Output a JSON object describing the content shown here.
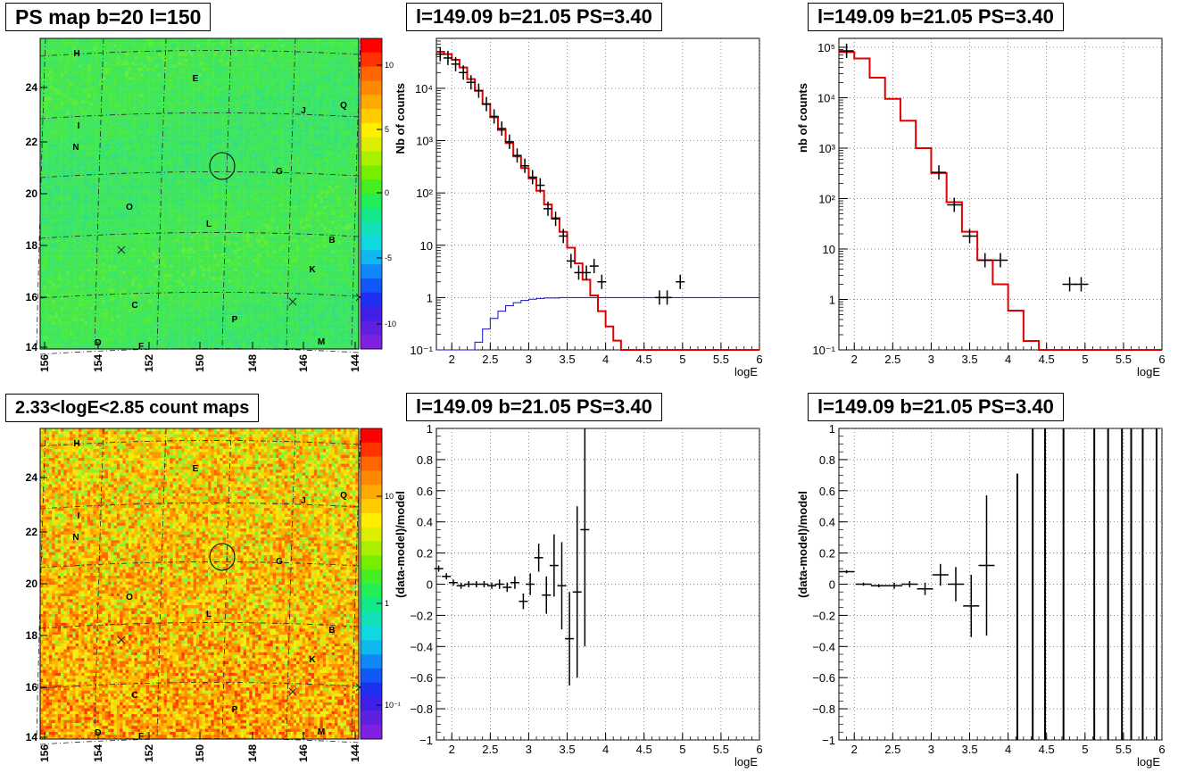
{
  "panels": {
    "map_top": {
      "title": "PS map b=20 l=150",
      "type": "heatmap",
      "x_ticks": [
        "156",
        "154",
        "152",
        "150",
        "148",
        "146",
        "144"
      ],
      "y_ticks": [
        "14",
        "16",
        "18",
        "20",
        "22",
        "24"
      ],
      "colorbar_ticks": [
        "10",
        "5",
        "0",
        "-5",
        "-10"
      ],
      "sources": [
        "H",
        "E",
        "J",
        "Q",
        "I",
        "N",
        "G",
        "O",
        "L",
        "B",
        "K",
        "C",
        "P",
        "D",
        "F",
        "M"
      ]
    },
    "map_bottom": {
      "title": "2.33<logE<2.85 count maps",
      "type": "heatmap",
      "x_ticks": [
        "156",
        "154",
        "152",
        "150",
        "148",
        "146",
        "144"
      ],
      "y_ticks": [
        "14",
        "16",
        "18",
        "20",
        "22",
        "24"
      ],
      "colorbar_ticks": [
        "10",
        "1",
        "10⁻¹"
      ],
      "sources": [
        "H",
        "E",
        "J",
        "Q",
        "I",
        "N",
        "G",
        "O",
        "L",
        "B",
        "K",
        "C",
        "P",
        "D",
        "F",
        "M"
      ]
    },
    "spec1": {
      "title": "l=149.09 b=21.05 PS=3.40",
      "ylabel": "Nb of counts",
      "xlabel": "logE",
      "x_ticks": [
        "2",
        "2.5",
        "3",
        "3.5",
        "4",
        "4.5",
        "5",
        "5.5",
        "6"
      ],
      "y_ticks": [
        "10⁻¹",
        "1",
        "10",
        "10²",
        "10³",
        "10⁴"
      ]
    },
    "spec2": {
      "title": "l=149.09 b=21.05 PS=3.40",
      "ylabel": "nb of counts",
      "xlabel": "logE",
      "x_ticks": [
        "2",
        "2.5",
        "3",
        "3.5",
        "4",
        "4.5",
        "5",
        "5.5",
        "6"
      ],
      "y_ticks": [
        "10⁻¹",
        "1",
        "10",
        "10²",
        "10³",
        "10⁴",
        "10⁵"
      ]
    },
    "res1": {
      "title": "l=149.09 b=21.05 PS=3.40",
      "ylabel": "(data-model)/model",
      "xlabel": "logE",
      "x_ticks": [
        "2",
        "2.5",
        "3",
        "3.5",
        "4",
        "4.5",
        "5",
        "5.5",
        "6"
      ],
      "y_ticks": [
        "1",
        "0.8",
        "0.6",
        "0.4",
        "0.2",
        "0",
        "−0.2",
        "−0.4",
        "−0.6",
        "−0.8",
        "−1"
      ]
    },
    "res2": {
      "title": "l=149.09 b=21.05 PS=3.40",
      "ylabel": "(data-model)/model",
      "xlabel": "logE",
      "x_ticks": [
        "2",
        "2.5",
        "3",
        "3.5",
        "4",
        "4.5",
        "5",
        "5.5",
        "6"
      ],
      "y_ticks": [
        "1",
        "0.8",
        "0.6",
        "0.4",
        "0.2",
        "0",
        "−0.2",
        "−0.4",
        "−0.6",
        "−0.8",
        "−1"
      ]
    }
  },
  "chart_data": [
    {
      "type": "heatmap",
      "title": "PS map b=20 l=150",
      "xlim": [
        156,
        144
      ],
      "ylim": [
        14,
        26
      ],
      "colorbar_range": [
        -12,
        12
      ],
      "marker_circle": {
        "l": 149.1,
        "b": 21.0
      }
    },
    {
      "type": "heatmap",
      "title": "2.33<logE<2.85 count maps",
      "xlim": [
        156,
        144
      ],
      "ylim": [
        14,
        26
      ],
      "colorbar_scale": "log",
      "marker_circle": {
        "l": 149.1,
        "b": 21.0
      }
    },
    {
      "type": "line",
      "title": "l=149.09 b=21.05 PS=3.40",
      "xlabel": "logE",
      "ylabel": "Nb of counts",
      "xlim": [
        1.8,
        6
      ],
      "ylim": [
        0.1,
        90000
      ],
      "y_scale": "log",
      "series": [
        {
          "x": [
            1.8,
            1.9,
            2.0,
            2.1,
            2.2,
            2.3,
            2.4,
            2.5,
            2.6,
            2.7,
            2.8,
            2.9,
            3.0,
            3.1,
            3.2,
            3.3,
            3.4,
            3.5,
            3.6,
            3.7,
            3.8,
            3.9,
            4.0,
            4.1,
            4.2,
            4.3,
            6.0
          ],
          "y": [
            50000,
            45000,
            35000,
            25000,
            15000,
            9000,
            5000,
            2800,
            1600,
            900,
            500,
            300,
            190,
            110,
            60,
            33,
            18,
            9,
            4.5,
            2.2,
            1.1,
            0.55,
            0.28,
            0.15,
            0.1,
            0.1,
            0.1
          ]
        },
        {
          "x": [
            1.8,
            2.2,
            2.3,
            2.4,
            2.5,
            2.6,
            2.7,
            2.8,
            2.9,
            3.0,
            3.1,
            3.2,
            3.4,
            3.6,
            6.0
          ],
          "y": [
            0.1,
            0.1,
            0.14,
            0.25,
            0.4,
            0.55,
            0.7,
            0.8,
            0.88,
            0.93,
            0.96,
            0.98,
            1.0,
            1.0,
            1.0
          ]
        }
      ],
      "points": {
        "x": [
          1.85,
          1.95,
          2.05,
          2.15,
          2.25,
          2.35,
          2.45,
          2.55,
          2.65,
          2.75,
          2.85,
          2.95,
          3.05,
          3.15,
          3.25,
          3.35,
          3.45,
          3.55,
          3.65,
          3.75,
          3.85,
          3.95,
          4.7,
          4.8,
          4.97
        ],
        "y": [
          45000,
          38000,
          29000,
          20000,
          13000,
          9000,
          5000,
          2900,
          1700,
          950,
          520,
          330,
          200,
          140,
          50,
          32,
          15,
          5,
          3,
          3,
          4,
          2,
          1,
          1,
          2
        ]
      }
    },
    {
      "type": "line",
      "title": "l=149.09 b=21.05 PS=3.40",
      "xlabel": "logE",
      "ylabel": "nb of counts",
      "xlim": [
        1.8,
        6
      ],
      "ylim": [
        0.1,
        150000
      ],
      "y_scale": "log",
      "series": [
        {
          "x": [
            1.8,
            2.0,
            2.2,
            2.4,
            2.6,
            2.8,
            3.0,
            3.2,
            3.4,
            3.6,
            3.8,
            4.0,
            4.2,
            4.4,
            6.0
          ],
          "y": [
            80000,
            60000,
            25000,
            9500,
            3500,
            1000,
            320,
            85,
            22,
            6,
            2,
            0.6,
            0.15,
            0.1,
            0.1
          ]
        }
      ],
      "points": {
        "x": [
          1.9,
          3.1,
          3.3,
          3.5,
          3.7,
          3.9,
          4.8,
          4.95
        ],
        "y": [
          85000,
          330,
          75,
          18,
          6,
          6,
          2,
          2
        ]
      }
    },
    {
      "type": "scatter",
      "title": "l=149.09 b=21.05 PS=3.40",
      "xlabel": "logE",
      "ylabel": "(data-model)/model",
      "xlim": [
        1.8,
        6
      ],
      "ylim": [
        -1,
        1
      ],
      "points": {
        "x": [
          1.83,
          1.93,
          2.02,
          2.12,
          2.22,
          2.32,
          2.42,
          2.52,
          2.62,
          2.72,
          2.82,
          2.93,
          3.02,
          3.13,
          3.23,
          3.33,
          3.43,
          3.53,
          3.63,
          3.73
        ],
        "y": [
          0.1,
          0.05,
          0.01,
          -0.01,
          0.0,
          0.0,
          0.0,
          -0.01,
          0.0,
          -0.02,
          0.01,
          -0.11,
          0.0,
          0.17,
          -0.07,
          0.12,
          -0.01,
          -0.35,
          -0.05,
          0.35
        ],
        "err": [
          0.02,
          0.02,
          0.02,
          0.02,
          0.02,
          0.02,
          0.02,
          0.02,
          0.03,
          0.03,
          0.04,
          0.05,
          0.07,
          0.09,
          0.12,
          0.2,
          0.28,
          0.3,
          0.55,
          0.75
        ]
      }
    },
    {
      "type": "scatter",
      "title": "l=149.09 b=21.05 PS=3.40",
      "xlabel": "logE",
      "ylabel": "(data-model)/model",
      "xlim": [
        1.8,
        6
      ],
      "ylim": [
        -1,
        1
      ],
      "points": {
        "x": [
          1.9,
          2.12,
          2.32,
          2.52,
          2.72,
          2.92,
          3.12,
          3.32,
          3.52,
          3.72
        ],
        "y": [
          0.08,
          0.0,
          -0.01,
          -0.01,
          0.0,
          -0.03,
          0.06,
          -0.0,
          -0.14,
          0.12
        ],
        "err": [
          0.01,
          0.01,
          0.01,
          0.02,
          0.02,
          0.04,
          0.07,
          0.11,
          0.2,
          0.45
        ]
      },
      "vertical_error_bars_at_x": [
        4.12,
        4.32,
        4.48,
        4.72,
        5.12,
        5.3,
        5.48,
        5.6,
        5.75,
        5.93
      ]
    }
  ]
}
